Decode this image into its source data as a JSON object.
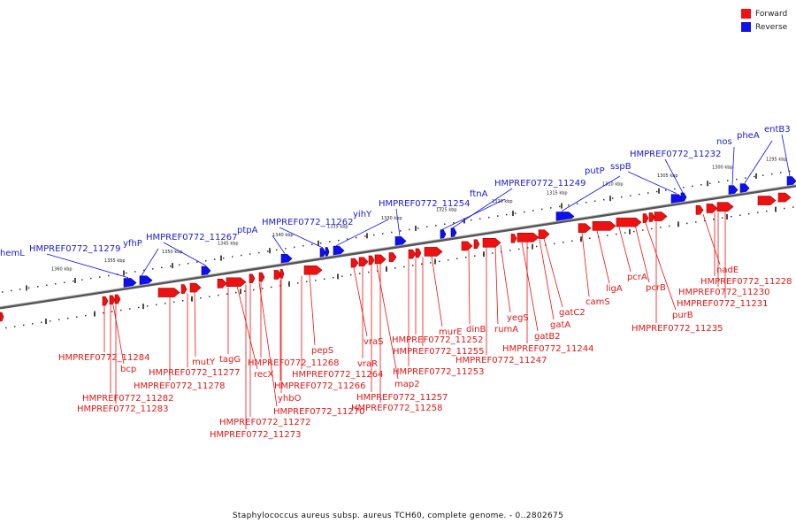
{
  "legend": {
    "forward_label": "Forward",
    "reverse_label": "Reverse",
    "forward_color": "#ee1111",
    "reverse_color": "#1010ee"
  },
  "caption": "Staphylococcus aureus subsp. aureus TCH60, complete genome. - 0..2802675",
  "kbp_ticks": [
    "1360 kbp",
    "1355 kbp",
    "1350 kbp",
    "1345 kbp",
    "1340 kbp",
    "1335 kbp",
    "1330 kbp",
    "1325 kbp",
    "1320 kbp",
    "1315 kbp",
    "1310 kbp",
    "1305 kbp",
    "1300 kbp",
    "1295 kbp"
  ],
  "reverse_genes": [
    "hemL",
    "HMPREF0772_11279",
    "yfhP",
    "HMPREF0772_11267",
    "ptpA",
    "HMPREF0772_11262",
    "yihY",
    "HMPREF0772_11254",
    "ftnA",
    "HMPREF0772_11249",
    "putP",
    "sspB",
    "HMPREF0772_11232",
    "nos",
    "pheA",
    "entB3"
  ],
  "forward_genes": [
    "HMPREF0772_11284",
    "bcp",
    "HMPREF0772_11282",
    "HMPREF0772_11283",
    "mutY",
    "HMPREF0772_11277",
    "HMPREF0772_11278",
    "tagG",
    "recX",
    "HMPREF0772_11270",
    "HMPREF0772_11272",
    "HMPREF0772_11273",
    "yhbO",
    "HMPREF0772_11268",
    "HMPREF0772_11266",
    "pepS",
    "HMPREF0772_11264",
    "vraS",
    "vraR",
    "map2",
    "HMPREF0772_11257",
    "HMPREF0772_11258",
    "HMPREF0772_11252",
    "HMPREF0772_11255",
    "HMPREF0772_11253",
    "murE",
    "dinB",
    "HMPREF0772_11247",
    "rumA",
    "yegS",
    "gatB2",
    "HMPREF0772_11244",
    "gatA",
    "gatC2",
    "camS",
    "ligA",
    "pcrA",
    "pcrB",
    "purB",
    "HMPREF0772_11235",
    "nadE",
    "HMPREF0772_11228",
    "HMPREF0772_11230",
    "HMPREF0772_11231"
  ]
}
